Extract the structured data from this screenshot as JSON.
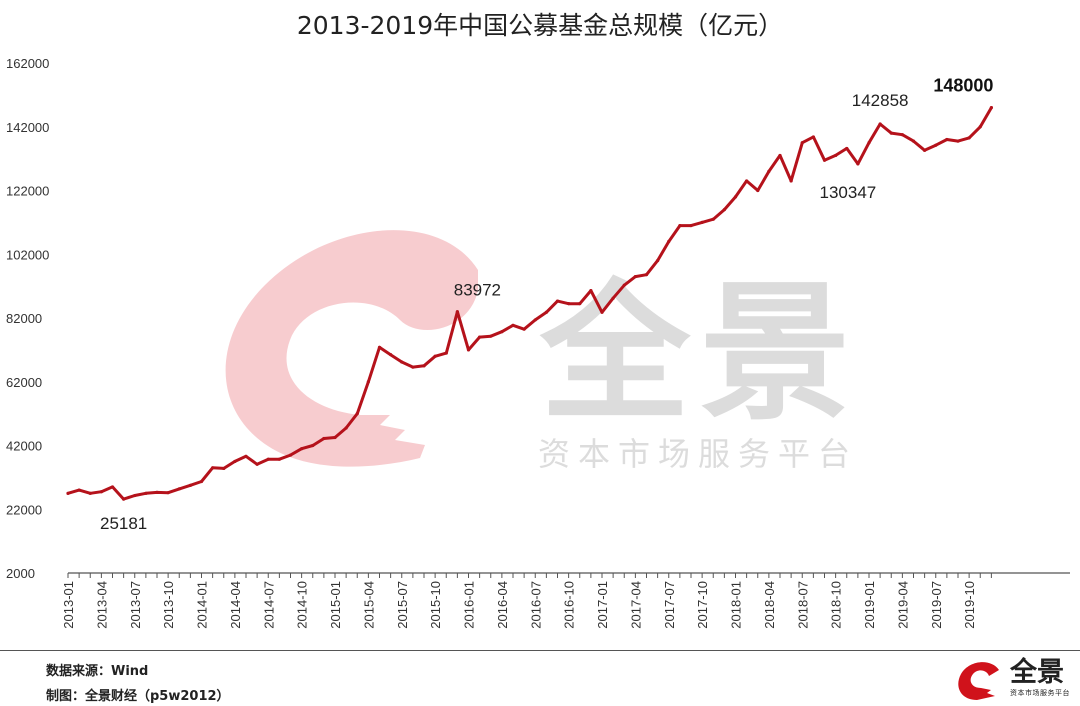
{
  "title": "2013-2019年中国公募基金总规模（亿元）",
  "watermark": {
    "brand": "全景",
    "tagline": "资本市场服务平台"
  },
  "footer": {
    "source": "数据来源：Wind",
    "credit": "制图：全景财经（p5w2012）",
    "brand": "全景",
    "brand_sub": "资本市场服务平台"
  },
  "colors": {
    "line": "#b5121b",
    "watermark_logo": "#f7c9cc",
    "watermark_text": "#dcdcdc"
  },
  "chart_data": {
    "type": "line",
    "title": "2013-2019年中国公募基金总规模（亿元）",
    "xlabel": "",
    "ylabel": "",
    "ylim": [
      2000,
      162000
    ],
    "yticks": [
      2000,
      22000,
      42000,
      62000,
      82000,
      102000,
      122000,
      142000,
      162000
    ],
    "xtick_labels": [
      "2013-01",
      "2013-04",
      "2013-07",
      "2013-10",
      "2014-01",
      "2014-04",
      "2014-07",
      "2014-10",
      "2015-01",
      "2015-04",
      "2015-07",
      "2015-10",
      "2016-01",
      "2016-04",
      "2016-07",
      "2016-10",
      "2017-01",
      "2017-04",
      "2017-07",
      "2017-10",
      "2018-01",
      "2018-04",
      "2018-07",
      "2018-10",
      "2019-01",
      "2019-04",
      "2019-07",
      "2019-10"
    ],
    "grid": false,
    "series": [
      {
        "values": [
          27000,
          28000,
          27000,
          27500,
          29000,
          25181,
          26300,
          27000,
          27300,
          27200,
          28400,
          29500,
          30700,
          35000,
          34800,
          37000,
          38600,
          36100,
          37700,
          37700,
          39000,
          41000,
          42000,
          44200,
          44500,
          47500,
          52000,
          62000,
          72800,
          70500,
          68200,
          66600,
          67000,
          70000,
          71000,
          83972,
          72000,
          76000,
          76300,
          77700,
          79700,
          78500,
          81400,
          83800,
          87300,
          86500,
          86500,
          90600,
          83800,
          88200,
          92300,
          95000,
          95600,
          100000,
          106000,
          111000,
          111000,
          112000,
          113000,
          116000,
          120000,
          125000,
          122000,
          128000,
          133000,
          125000,
          137000,
          138800,
          131500,
          133000,
          135200,
          130347,
          137000,
          142858,
          140000,
          139500,
          137500,
          134600,
          136200,
          138000,
          137500,
          138500,
          142000,
          148000
        ]
      }
    ],
    "annotations": [
      {
        "label": "25181",
        "index": 5
      },
      {
        "label": "83972",
        "index": 35
      },
      {
        "label": "142858",
        "index": 73
      },
      {
        "label": "130347",
        "index": 71
      },
      {
        "label": "148000",
        "index": 83,
        "bold": true
      }
    ]
  }
}
